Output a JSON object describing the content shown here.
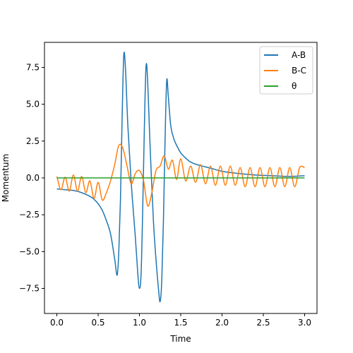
{
  "chart_data": {
    "type": "line",
    "title": "",
    "xlabel": "Time",
    "ylabel": "Momentum",
    "xlim": [
      -0.15,
      3.15
    ],
    "ylim": [
      -9.2,
      9.2
    ],
    "xticks": [
      0.0,
      0.5,
      1.0,
      1.5,
      2.0,
      2.5,
      3.0
    ],
    "xtick_labels": [
      "0.0",
      "0.5",
      "1.0",
      "1.5",
      "2.0",
      "2.5",
      "3.0"
    ],
    "yticks": [
      -7.5,
      -5.0,
      -2.5,
      0.0,
      2.5,
      5.0,
      7.5
    ],
    "ytick_labels": [
      "−7.5",
      "−5.0",
      "−2.5",
      "0.0",
      "2.5",
      "5.0",
      "7.5"
    ],
    "grid": false,
    "legend_position": "top-right",
    "series": [
      {
        "name": "A-B",
        "color": "#1f77b4",
        "x": [
          0.0,
          0.1,
          0.2,
          0.3,
          0.4,
          0.45,
          0.5,
          0.55,
          0.6,
          0.65,
          0.7,
          0.73,
          0.75,
          0.77,
          0.79,
          0.81,
          0.83,
          0.86,
          0.9,
          0.95,
          0.98,
          1.0,
          1.02,
          1.04,
          1.06,
          1.08,
          1.1,
          1.13,
          1.17,
          1.2,
          1.23,
          1.25,
          1.27,
          1.29,
          1.31,
          1.33,
          1.35,
          1.38,
          1.42,
          1.46,
          1.5,
          1.55,
          1.6,
          1.65,
          1.7,
          1.8,
          1.9,
          2.0,
          2.2,
          2.4,
          2.6,
          2.8,
          3.0
        ],
        "y": [
          -0.75,
          -0.8,
          -0.85,
          -1.0,
          -1.25,
          -1.45,
          -1.75,
          -2.2,
          -2.9,
          -3.8,
          -5.5,
          -6.6,
          -5.0,
          -1.5,
          4.0,
          8.3,
          7.5,
          3.5,
          -0.3,
          -4.0,
          -6.5,
          -7.5,
          -6.5,
          -2.0,
          3.5,
          7.6,
          6.5,
          2.0,
          -3.0,
          -5.5,
          -7.5,
          -8.4,
          -7.0,
          -3.0,
          2.5,
          6.6,
          5.5,
          3.5,
          2.6,
          2.1,
          1.7,
          1.4,
          1.15,
          1.0,
          0.9,
          0.75,
          0.6,
          0.45,
          0.3,
          0.2,
          0.15,
          0.1,
          0.15
        ]
      },
      {
        "name": "B-C",
        "color": "#ff7f0e",
        "x": [
          0.0,
          0.05,
          0.1,
          0.15,
          0.2,
          0.25,
          0.3,
          0.35,
          0.4,
          0.45,
          0.5,
          0.55,
          0.6,
          0.65,
          0.7,
          0.75,
          0.8,
          0.85,
          0.9,
          0.95,
          1.0,
          1.05,
          1.1,
          1.15,
          1.2,
          1.25,
          1.3,
          1.35,
          1.4,
          1.45,
          1.5,
          1.56,
          1.62,
          1.68,
          1.74,
          1.8,
          1.86,
          1.92,
          1.98,
          2.04,
          2.1,
          2.16,
          2.22,
          2.28,
          2.34,
          2.4,
          2.46,
          2.52,
          2.58,
          2.64,
          2.7,
          2.76,
          2.82,
          2.88,
          2.94,
          3.0
        ],
        "y": [
          0.1,
          -0.8,
          0.05,
          -0.9,
          0.2,
          -0.9,
          0.1,
          -1.0,
          -0.2,
          -1.4,
          -0.3,
          -1.5,
          -1.0,
          -0.2,
          0.9,
          2.2,
          2.0,
          0.8,
          -0.4,
          0.3,
          0.5,
          -0.2,
          -1.9,
          -1.0,
          0.5,
          0.8,
          1.5,
          0.6,
          1.2,
          -0.1,
          1.3,
          -0.2,
          0.8,
          -0.3,
          0.9,
          -0.4,
          0.8,
          -0.5,
          0.8,
          -0.5,
          0.8,
          -0.5,
          0.7,
          -0.6,
          0.7,
          -0.6,
          0.7,
          -0.6,
          0.7,
          -0.6,
          0.7,
          -0.6,
          0.7,
          -0.6,
          0.7,
          0.7
        ]
      },
      {
        "name": "θ",
        "color": "#2ca02c",
        "x": [
          0.0,
          3.0
        ],
        "y": [
          0.0,
          0.0
        ]
      }
    ]
  }
}
